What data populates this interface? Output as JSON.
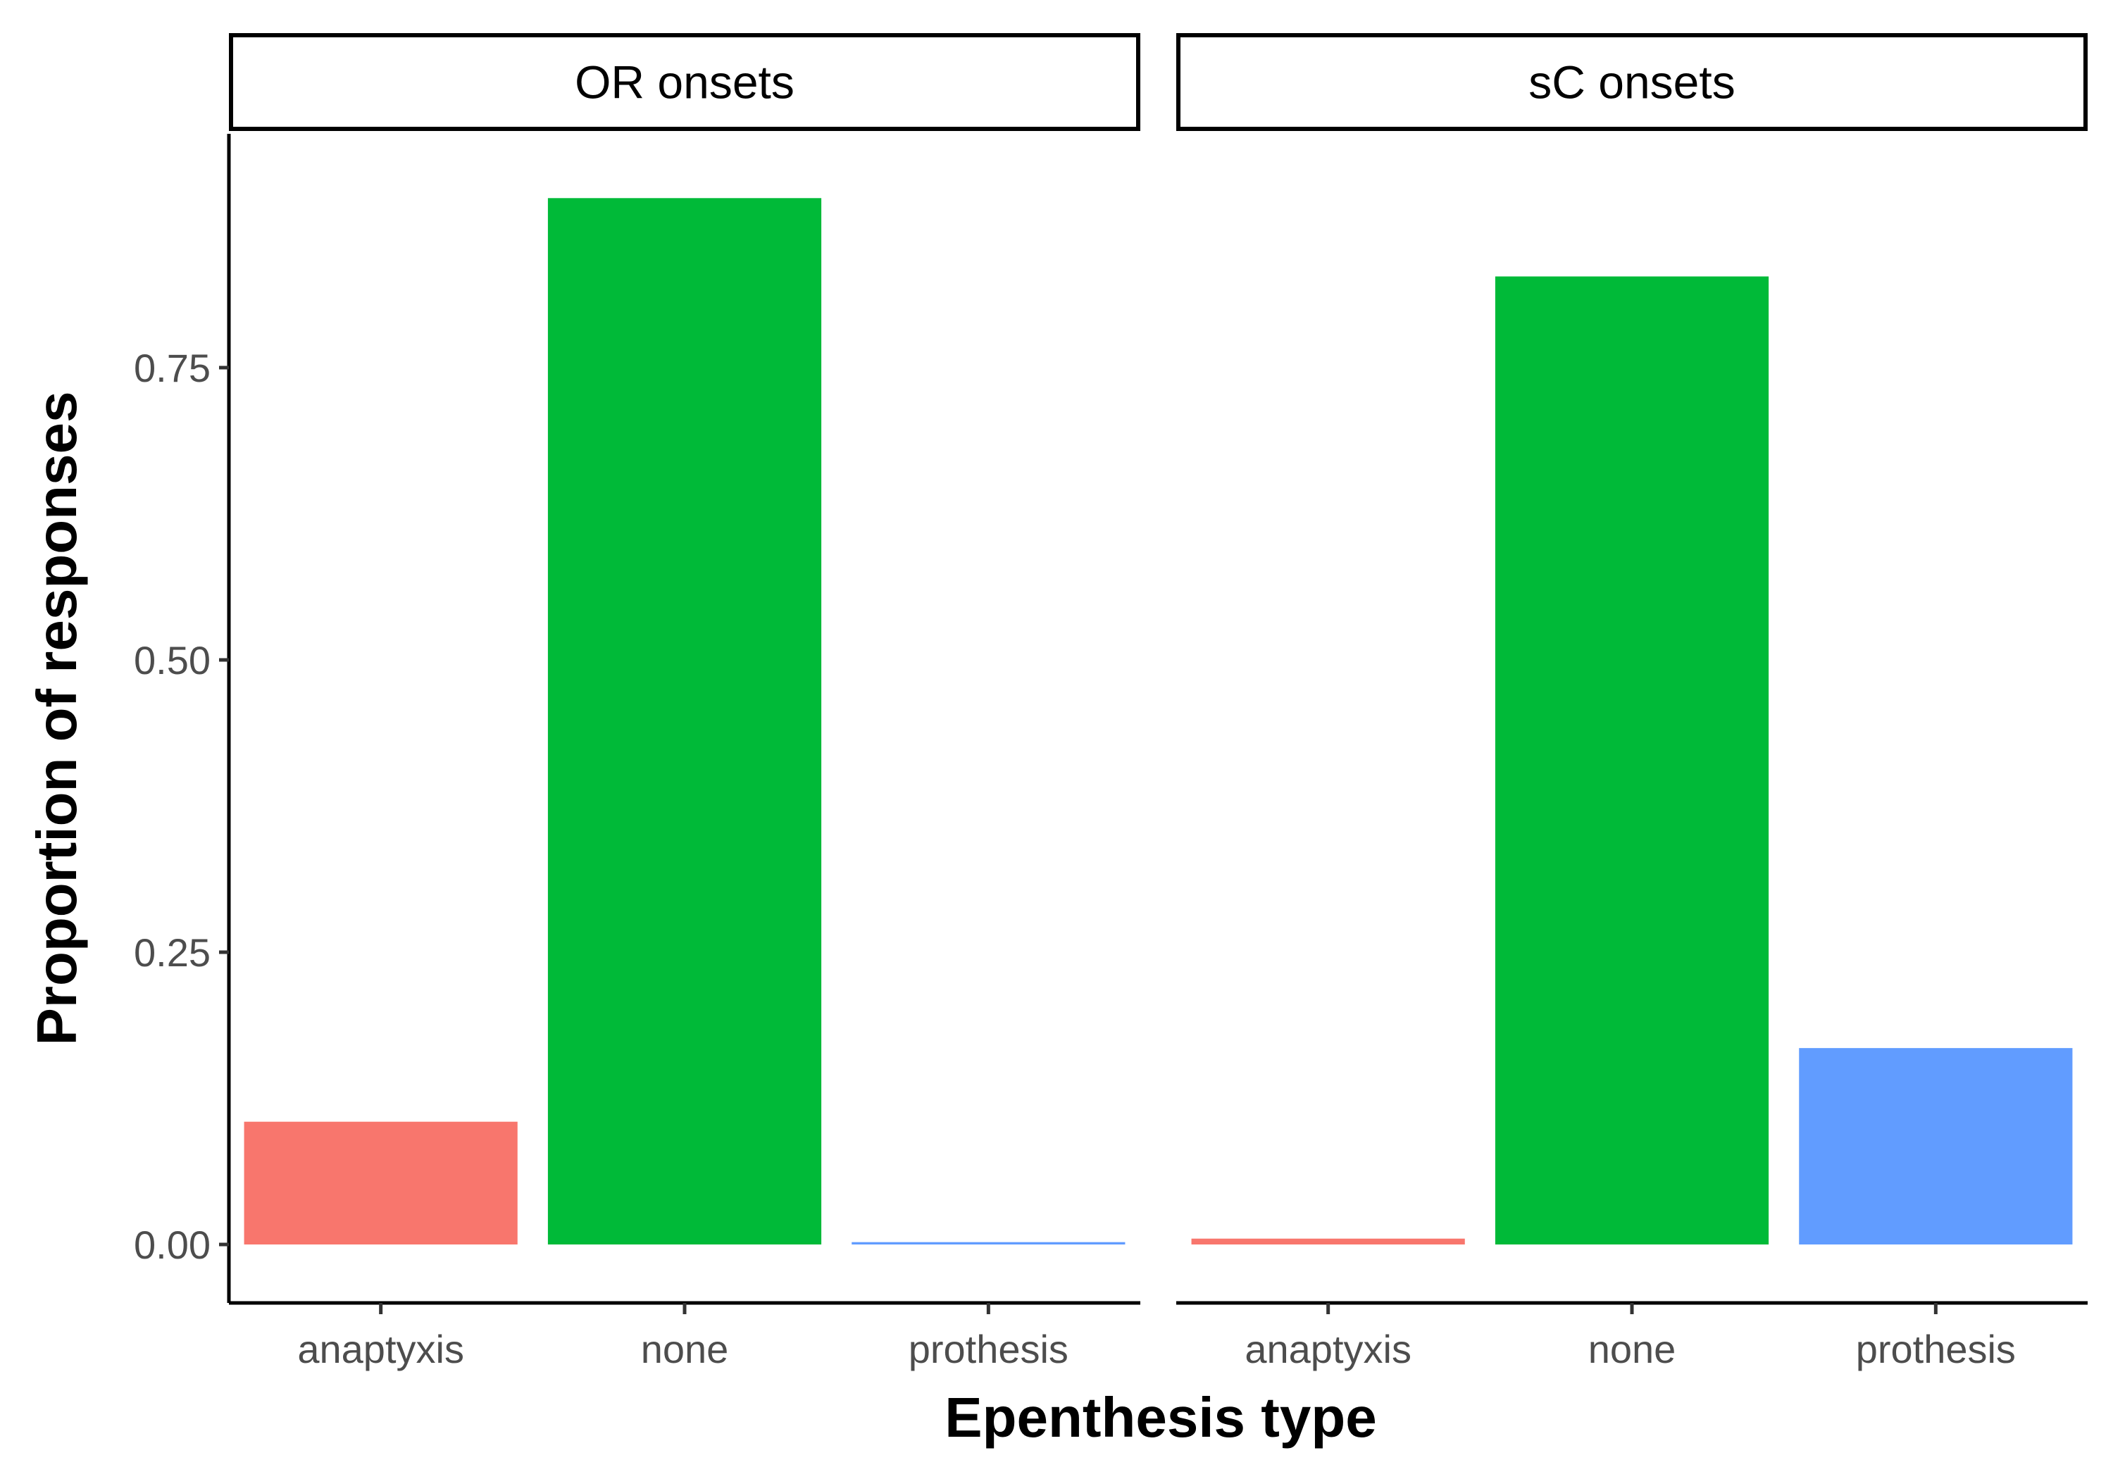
{
  "chart_data": {
    "type": "bar",
    "faceted": true,
    "xlabel": "Epenthesis type",
    "ylabel": "Proportion of responses",
    "ylim": [
      -0.05,
      0.95
    ],
    "yticks": [
      0.0,
      0.25,
      0.5,
      0.75
    ],
    "ytick_labels": [
      "0.00",
      "0.25",
      "0.50",
      "0.75"
    ],
    "categories": [
      "anaptyxis",
      "none",
      "prothesis"
    ],
    "category_colors": [
      "#F8766D",
      "#00BA38",
      "#619CFF"
    ],
    "panels": [
      {
        "title": "OR onsets",
        "values": [
          0.105,
          0.895,
          0.002
        ]
      },
      {
        "title": "sC onsets",
        "values": [
          0.005,
          0.828,
          0.168
        ]
      }
    ],
    "legend": "none"
  }
}
